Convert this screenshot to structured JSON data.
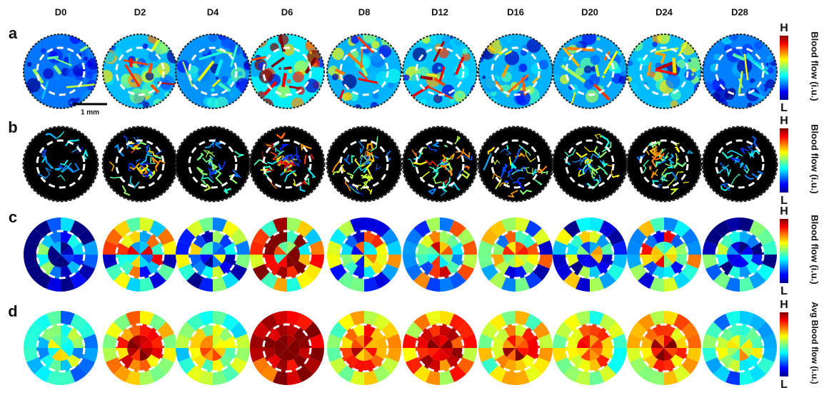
{
  "columns": [
    "D0",
    "D2",
    "D4",
    "D6",
    "D8",
    "D12",
    "D16",
    "D20",
    "D24",
    "D28"
  ],
  "rows": [
    {
      "label": "a",
      "colorbar": {
        "high": "H",
        "low": "L",
        "title": "Blood flow (i.u.)"
      }
    },
    {
      "label": "b",
      "colorbar": {
        "high": "H",
        "low": "L",
        "title": "Blood flow (i.u.)"
      }
    },
    {
      "label": "c",
      "colorbar": {
        "high": "H",
        "low": "L",
        "title": "Blood flow (i.u.)"
      }
    },
    {
      "label": "d",
      "colorbar": {
        "high": "H",
        "low": "L",
        "title": "Avg Blood flow (i.u.)"
      }
    }
  ],
  "scale_bar": "1 mm"
}
